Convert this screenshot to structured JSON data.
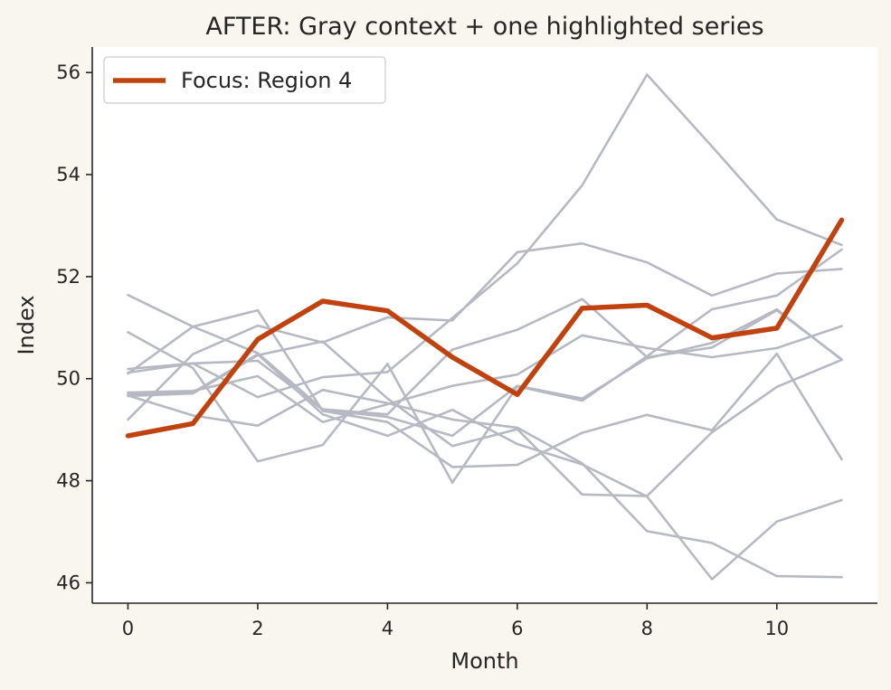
{
  "chart_data": {
    "type": "line",
    "title": "AFTER: Gray context + one highlighted series",
    "xlabel": "Month",
    "ylabel": "Index",
    "xlim": [
      -0.55,
      11.55
    ],
    "ylim": [
      45.6,
      56.5
    ],
    "xticks": [
      0,
      2,
      4,
      6,
      8,
      10
    ],
    "yticks": [
      46,
      48,
      50,
      52,
      54,
      56
    ],
    "grid": false,
    "legend": {
      "position": "top-left",
      "entries": [
        "Focus: Region 4"
      ]
    },
    "colors": {
      "focus": "#c0430f",
      "context": "#b6b9c1",
      "plot_bg": "#ffffff",
      "page_bg": "#f9f6ef"
    },
    "x": [
      0,
      1,
      2,
      3,
      4,
      5,
      6,
      7,
      8,
      9,
      10,
      11
    ],
    "focus": {
      "name": "Focus: Region 4",
      "values": [
        48.88,
        49.12,
        50.77,
        51.52,
        51.33,
        50.42,
        49.69,
        51.38,
        51.44,
        50.8,
        50.99,
        53.11
      ]
    },
    "context_series": [
      {
        "values": [
          51.64,
          51.02,
          50.5,
          49.4,
          49.3,
          50.57,
          50.96,
          51.56,
          50.42,
          50.61,
          51.34,
          50.38
        ]
      },
      {
        "values": [
          49.7,
          49.73,
          50.48,
          49.3,
          48.88,
          49.39,
          48.72,
          48.32,
          47.69,
          46.07,
          47.2,
          47.62
        ]
      },
      {
        "values": [
          50.1,
          51.02,
          51.34,
          49.37,
          49.15,
          48.27,
          48.31,
          48.94,
          49.29,
          48.99,
          50.49,
          48.42
        ]
      },
      {
        "values": [
          49.2,
          50.48,
          51.04,
          50.71,
          51.2,
          51.14,
          52.48,
          52.65,
          52.28,
          51.63,
          52.06,
          52.15
        ]
      },
      {
        "values": [
          50.91,
          50.21,
          48.38,
          48.7,
          50.29,
          47.96,
          49.85,
          49.57,
          50.44,
          51.36,
          51.63,
          52.53
        ]
      },
      {
        "values": [
          50.12,
          50.3,
          49.64,
          50.03,
          50.13,
          51.19,
          52.26,
          53.79,
          55.96,
          54.55,
          53.12,
          52.62
        ]
      },
      {
        "values": [
          49.67,
          49.28,
          49.08,
          49.78,
          49.52,
          49.2,
          49.04,
          48.34,
          47.01,
          46.78,
          46.13,
          46.11
        ]
      },
      {
        "values": [
          49.73,
          49.76,
          50.05,
          49.15,
          49.5,
          49.86,
          50.08,
          50.85,
          50.6,
          50.42,
          50.6,
          51.03
        ]
      },
      {
        "values": [
          49.66,
          49.71,
          50.46,
          50.73,
          49.61,
          48.68,
          49.01,
          47.73,
          47.7,
          48.95,
          49.84,
          50.37
        ]
      },
      {
        "values": [
          50.19,
          50.3,
          50.35,
          49.39,
          49.25,
          48.88,
          49.86,
          49.61,
          50.4,
          50.7,
          51.36,
          50.37
        ]
      }
    ]
  }
}
